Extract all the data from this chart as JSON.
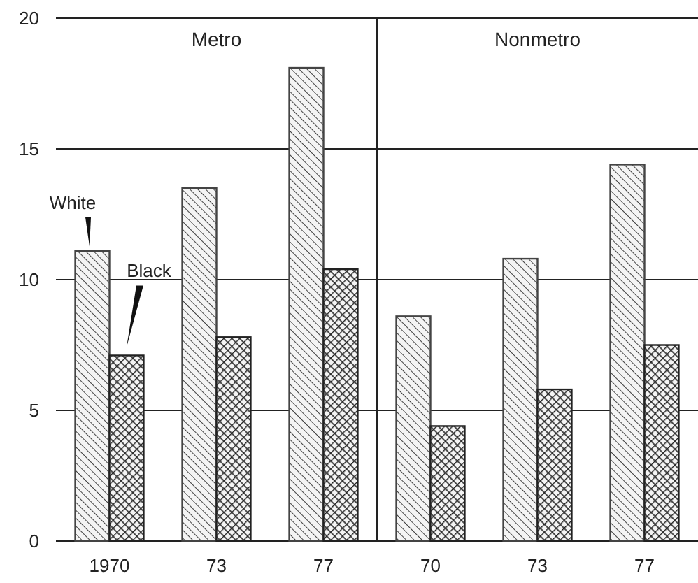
{
  "chart_data": {
    "type": "bar",
    "categories": [
      "1970",
      "73",
      "77",
      "70",
      "73",
      "77"
    ],
    "series": [
      {
        "name": "White",
        "color": "#444444",
        "values": [
          11.1,
          13.5,
          18.1,
          8.6,
          10.8,
          14.4
        ]
      },
      {
        "name": "Black",
        "color": "#222222",
        "values": [
          7.1,
          7.8,
          10.4,
          4.4,
          5.8,
          7.5
        ]
      }
    ],
    "ylim": [
      0,
      20
    ],
    "yticks": [
      0,
      5,
      10,
      15,
      20
    ],
    "grid": "y",
    "annotations": [
      "Metro",
      "Nonmetro"
    ]
  }
}
